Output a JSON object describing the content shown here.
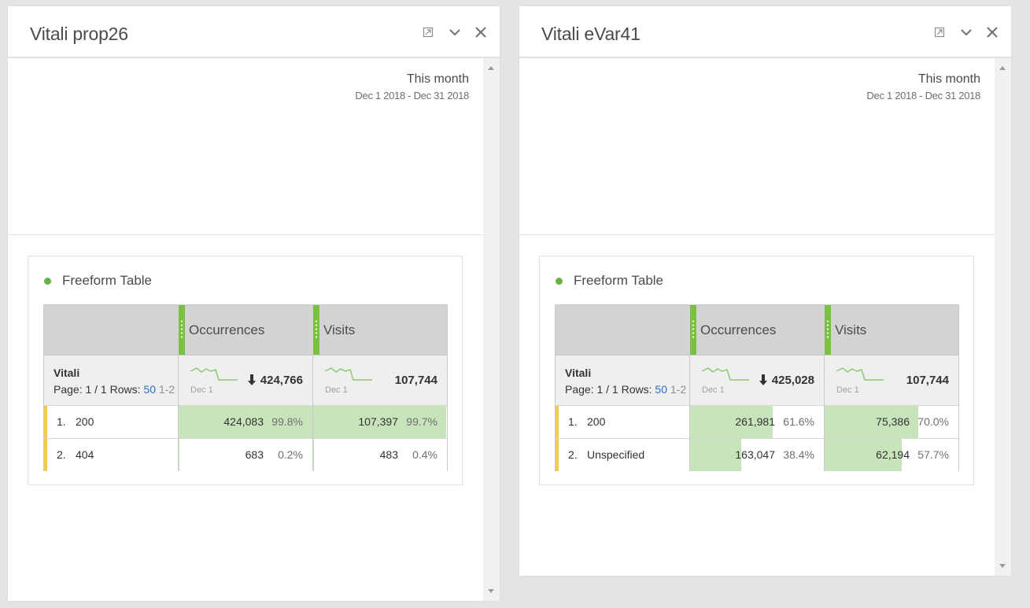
{
  "panels": [
    {
      "title": "Vitali prop26",
      "date_range_title": "This month",
      "date_range_value": "Dec 1 2018 - Dec 31 2018",
      "viz_title": "Freeform Table",
      "table": {
        "columns": [
          "Occurrences",
          "Visits"
        ],
        "dimension": "Vitali",
        "pager_prefix": "Page: 1 / 1 Rows:",
        "rows_per_page": "50",
        "row_range": "1-2",
        "spark_label": "Dec 1",
        "totals": [
          "424,766",
          "107,744"
        ],
        "rows": [
          {
            "rank": "1.",
            "item": "200",
            "occ": "424,083",
            "occ_pct": "99.8%",
            "occ_fill": 0.998,
            "vis": "107,397",
            "vis_pct": "99.7%",
            "vis_fill": 0.997
          },
          {
            "rank": "2.",
            "item": "404",
            "occ": "683",
            "occ_pct": "0.2%",
            "occ_fill": 0.002,
            "vis": "483",
            "vis_pct": "0.4%",
            "vis_fill": 0.004
          }
        ]
      }
    },
    {
      "title": "Vitali eVar41",
      "date_range_title": "This month",
      "date_range_value": "Dec 1 2018 - Dec 31 2018",
      "viz_title": "Freeform Table",
      "table": {
        "columns": [
          "Occurrences",
          "Visits"
        ],
        "dimension": "Vitali",
        "pager_prefix": "Page: 1 / 1 Rows:",
        "rows_per_page": "50",
        "row_range": "1-2",
        "spark_label": "Dec 1",
        "totals": [
          "425,028",
          "107,744"
        ],
        "rows": [
          {
            "rank": "1.",
            "item": "200",
            "occ": "261,981",
            "occ_pct": "61.6%",
            "occ_fill": 0.616,
            "vis": "75,386",
            "vis_pct": "70.0%",
            "vis_fill": 0.7
          },
          {
            "rank": "2.",
            "item": "Unspecified",
            "occ": "163,047",
            "occ_pct": "38.4%",
            "occ_fill": 0.384,
            "vis": "62,194",
            "vis_pct": "57.7%",
            "vis_fill": 0.577
          }
        ]
      }
    }
  ],
  "colors": {
    "bar_fill": "#c8e4bb",
    "column_grip": "#7ac043",
    "row_accent": "#f2cb50",
    "viz_dot": "#6ab04c",
    "sparkline": "#8cc972",
    "link": "#2d6ec9"
  },
  "icons": [
    "collapse-icon",
    "chevron-down-icon",
    "close-icon",
    "arrow-down-icon",
    "sparkline-icon"
  ]
}
